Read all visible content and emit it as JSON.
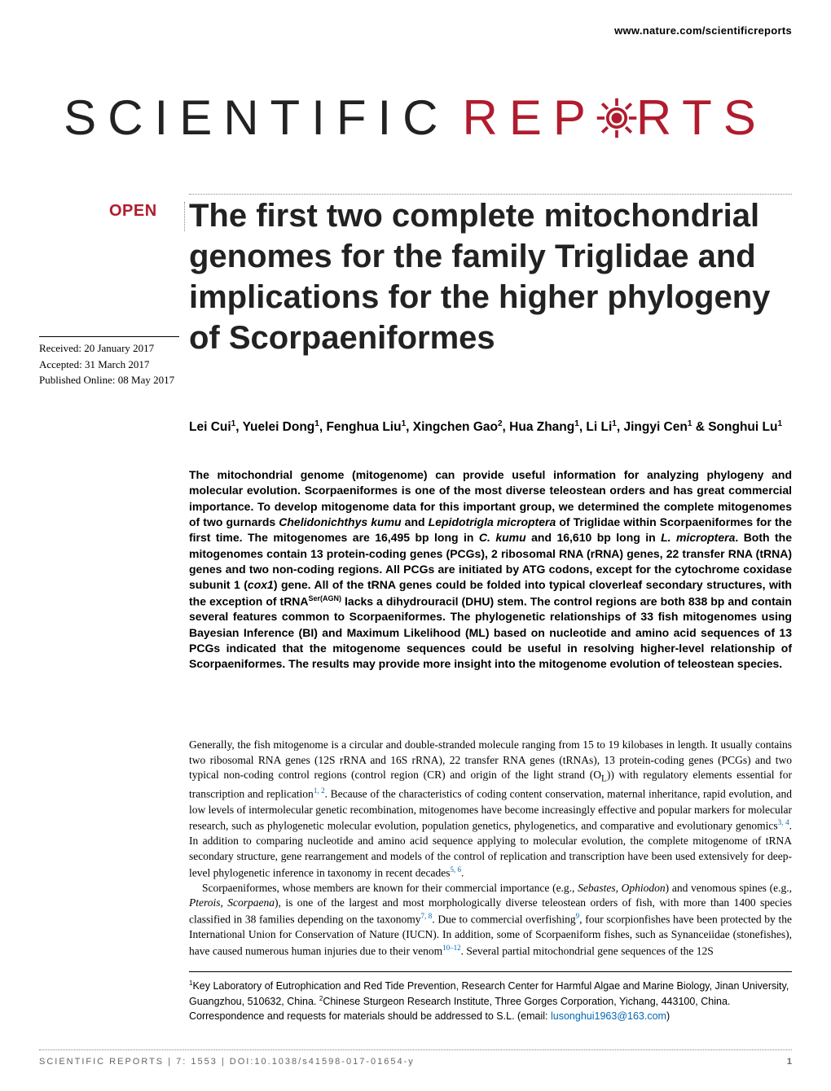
{
  "header": {
    "website": "www.nature.com/scientificreports"
  },
  "logo": {
    "left_text": "SCIENTIFIC",
    "right_pre": "REP",
    "right_post": "RTS",
    "gear_color": "#b01c2e"
  },
  "open_badge": "OPEN",
  "title": "The first two complete mitochondrial genomes for the family Triglidae and implications for the higher phylogeny of Scorpaeniformes",
  "dates": {
    "received": "Received: 20 January 2017",
    "accepted": "Accepted: 31 March 2017",
    "published": "Published Online: 08 May 2017"
  },
  "authors_html": "Lei Cui<sup>1</sup>, Yuelei Dong<sup>1</sup>, Fenghua Liu<sup>1</sup>, Xingchen Gao<sup>2</sup>, Hua Zhang<sup>1</sup>, Li Li<sup>1</sup>, Jingyi Cen<sup>1</sup> & Songhui Lu<sup>1</sup>",
  "abstract_html": "The mitochondrial genome (mitogenome) can provide useful information for analyzing phylogeny and molecular evolution. Scorpaeniformes is one of the most diverse teleostean orders and has great commercial importance. To develop mitogenome data for this important group, we determined the complete mitogenomes of two gurnards <i>Chelidonichthys kumu</i> and <i>Lepidotrigla microptera</i> of Triglidae within Scorpaeniformes for the first time. The mitogenomes are 16,495 bp long in <i>C. kumu</i> and 16,610 bp long in <i>L. microptera</i>. Both the mitogenomes contain 13 protein-coding genes (PCGs), 2 ribosomal RNA (rRNA) genes, 22 transfer RNA (tRNA) genes and two non-coding regions. All PCGs are initiated by ATG codons, except for the cytochrome coxidase subunit 1 (<i>cox1</i>) gene. All of the tRNA genes could be folded into typical cloverleaf secondary structures, with the exception of tRNA<sup>Ser(AGN)</sup> lacks a dihydrouracil (DHU) stem. The control regions are both 838 bp and contain several features common to Scorpaeniformes. The phylogenetic relationships of 33 fish mitogenomes using Bayesian Inference (BI) and Maximum Likelihood (ML) based on nucleotide and amino acid sequences of 13 PCGs indicated that the mitogenome sequences could be useful in resolving higher-level relationship of Scorpaeniformes. The results may provide more insight into the mitogenome evolution of teleostean species.",
  "body_p1_html": "Generally, the fish mitogenome is a circular and double-stranded molecule ranging from 15 to 19 kilobases in length. It usually contains two ribosomal RNA genes (12S rRNA and 16S rRNA), 22 transfer RNA genes (tRNAs), 13 protein-coding genes (PCGs) and two typical non-coding control regions (control region (CR) and origin of the light strand (O<sub>L</sub>)) with regulatory elements essential for transcription and replication<sup class=\"cite\">1, 2</sup>. Because of the characteristics of coding content conservation, maternal inheritance, rapid evolution, and low levels of intermolecular genetic recombination, mitogenomes have become increasingly effective and popular markers for molecular research, such as phylogenetic molecular evolution, population genetics, phylogenetics, and comparative and evolutionary genomics<sup class=\"cite\">3, 4</sup>. In addition to comparing nucleotide and amino acid sequence applying to molecular evolution, the complete mitogenome of tRNA secondary structure, gene rearrangement and models of the control of replication and transcription have been used extensively for deep-level phylogenetic inference in taxonomy in recent decades<sup class=\"cite\">5, 6</sup>.",
  "body_p2_html": "Scorpaeniformes, whose members are known for their commercial importance (e.g., <i>Sebastes, Ophiodon</i>) and venomous spines (e.g., <i>Pterois, Scorpaena</i>), is one of the largest and most morphologically diverse teleostean orders of fish, with more than 1400 species classified in 38 families depending on the taxonomy<sup class=\"cite\">7, 8</sup>. Due to commercial overfishing<sup class=\"cite\">9</sup>, four scorpionfishes have been protected by the International Union for Conservation of Nature (IUCN). In addition, some of Scorpaeniform fishes, such as Synanceiidae (stonefishes), have caused numerous human injuries due to their venom<sup class=\"cite\">10–12</sup>. Several partial mitochondrial gene sequences of the 12S",
  "footnotes_html": "<sup>1</sup>Key Laboratory of Eutrophication and Red Tide Prevention, Research Center for Harmful Algae and Marine Biology, Jinan University, Guangzhou, 510632, China. <sup>2</sup>Chinese Sturgeon Research Institute, Three Gorges Corporation, Yichang, 443100, China. Correspondence and requests for materials should be addressed to S.L. (email: <span class=\"email\">lusonghui1963@163.com</span>)",
  "footer": {
    "citation": "SCIENTIFIC REPORTS | 7: 1553 | DOI:10.1038/s41598-017-01654-y",
    "page": "1"
  },
  "colors": {
    "accent_red": "#b01c2e",
    "cite_blue": "#0066b3",
    "footer_gray": "#666666",
    "text_black": "#000000",
    "background": "#ffffff"
  }
}
